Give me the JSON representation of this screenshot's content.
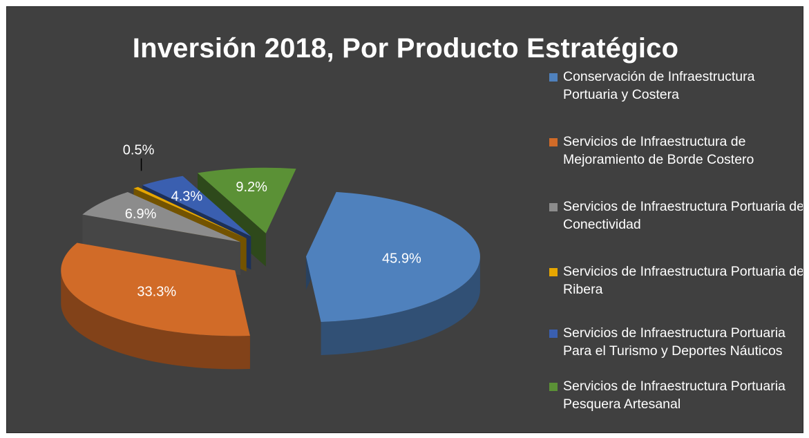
{
  "chart_data": {
    "type": "pie",
    "title": "Inversión 2018, Por Producto Estratégico",
    "categories": [
      "Conservación de Infraestructura Portuaria y Costera",
      "Servicios de Infraestructura de Mejoramiento de Borde Costero",
      "Servicios de Infraestructura Portuaria de Conectividad",
      "Servicios de Infraestructura Portuaria de Ribera",
      "Servicios de Infraestructura Portuaria Para el Turismo y Deportes Náuticos",
      "Servicios de Infraestructura Portuaria Pesquera Artesanal"
    ],
    "values": [
      45.9,
      33.3,
      6.9,
      0.5,
      4.3,
      9.2
    ],
    "labels": [
      "45.9%",
      "33.3%",
      "6.9%",
      "0.5%",
      "4.3%",
      "9.2%"
    ],
    "colors": [
      "#4f81bd",
      "#d16b28",
      "#8c8c8c",
      "#e6a600",
      "#3a5fb0",
      "#5b9136"
    ],
    "legend_position": "right",
    "style": "3d-exploded"
  }
}
